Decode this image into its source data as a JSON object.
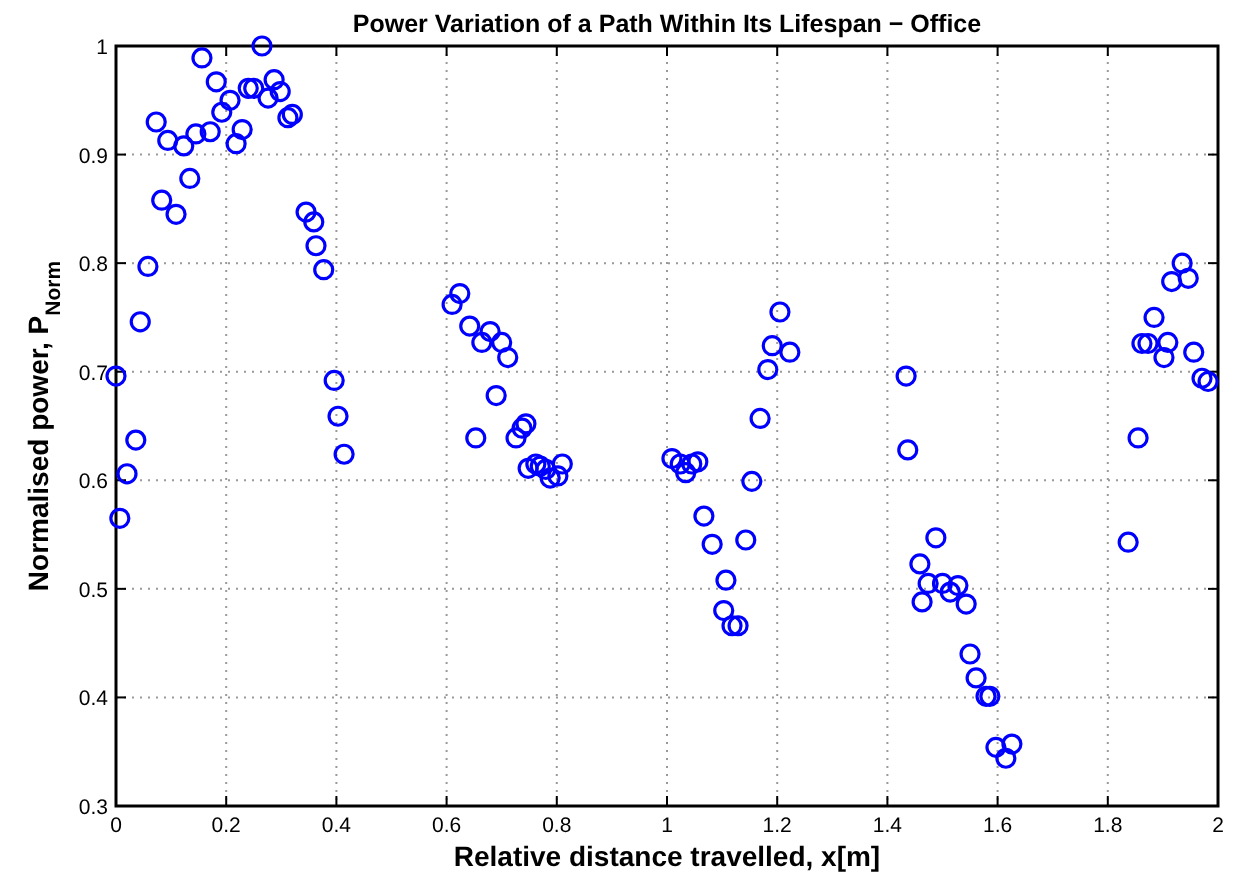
{
  "chart_data": {
    "type": "scatter",
    "title": "Power Variation of a Path Within Its Lifespan − Office",
    "xlabel": "Relative distance travelled, x[m]",
    "ylabel": "Normalised power, P$_{Norm}$",
    "xlim": [
      0,
      2
    ],
    "xticks": [
      0,
      0.2,
      0.4,
      0.6,
      0.8,
      1,
      1.2,
      1.4,
      1.6,
      1.8,
      2
    ],
    "ylim": [
      0.3,
      1
    ],
    "yticks": [
      0.3,
      0.4,
      0.5,
      0.6,
      0.7,
      0.8,
      0.9,
      1
    ],
    "grid": true,
    "marker": "circle",
    "series": [
      {
        "color": "#0000ff",
        "x": [
          0,
          0.007,
          0.02,
          0.036,
          0.044,
          0.058,
          0.073,
          0.083,
          0.094,
          0.109,
          0.123,
          0.134,
          0.145,
          0.156,
          0.171,
          0.182,
          0.192,
          0.207,
          0.218,
          0.229,
          0.24,
          0.25,
          0.265,
          0.276,
          0.287,
          0.298,
          0.312,
          0.32,
          0.345,
          0.359,
          0.363,
          0.377,
          0.396,
          0.403,
          0.414,
          0.61,
          0.624,
          0.642,
          0.653,
          0.664,
          0.679,
          0.69,
          0.7,
          0.711,
          0.726,
          0.737,
          0.744,
          0.748,
          0.762,
          0.77,
          0.78,
          0.788,
          0.802,
          0.81,
          1.009,
          1.024,
          1.034,
          1.045,
          1.056,
          1.067,
          1.082,
          1.107,
          1.103,
          1.118,
          1.129,
          1.143,
          1.154,
          1.169,
          1.183,
          1.191,
          1.205,
          1.223,
          1.434,
          1.437,
          1.488,
          1.459,
          1.474,
          1.463,
          1.5,
          1.514,
          1.528,
          1.543,
          1.55,
          1.561,
          1.579,
          1.586,
          1.597,
          1.615,
          1.626,
          1.837,
          1.855,
          1.862,
          1.873,
          1.884,
          1.902,
          1.909,
          1.916,
          1.935,
          1.946,
          1.956,
          1.971,
          1.982
        ],
        "values": [
          0.696,
          0.565,
          0.606,
          0.637,
          0.746,
          0.797,
          0.93,
          0.858,
          0.913,
          0.845,
          0.908,
          0.878,
          0.919,
          0.989,
          0.921,
          0.967,
          0.939,
          0.95,
          0.91,
          0.923,
          0.961,
          0.961,
          1.0,
          0.952,
          0.969,
          0.958,
          0.934,
          0.937,
          0.847,
          0.838,
          0.816,
          0.794,
          0.692,
          0.659,
          0.624,
          0.762,
          0.772,
          0.742,
          0.639,
          0.727,
          0.737,
          0.678,
          0.727,
          0.713,
          0.639,
          0.648,
          0.652,
          0.611,
          0.615,
          0.613,
          0.61,
          0.602,
          0.604,
          0.615,
          0.62,
          0.615,
          0.607,
          0.615,
          0.617,
          0.567,
          0.541,
          0.508,
          0.48,
          0.466,
          0.466,
          0.545,
          0.599,
          0.657,
          0.702,
          0.724,
          0.755,
          0.718,
          0.696,
          0.628,
          0.547,
          0.523,
          0.505,
          0.488,
          0.505,
          0.497,
          0.503,
          0.486,
          0.44,
          0.418,
          0.401,
          0.401,
          0.354,
          0.344,
          0.357,
          0.543,
          0.639,
          0.726,
          0.726,
          0.75,
          0.713,
          0.727,
          0.783,
          0.8,
          0.786,
          0.718,
          0.694,
          0.691
        ]
      }
    ]
  }
}
